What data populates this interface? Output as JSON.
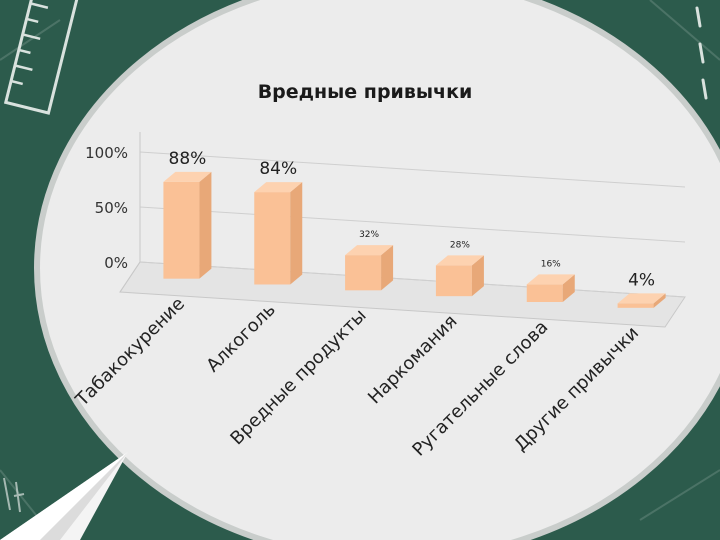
{
  "chart_data": {
    "type": "bar",
    "title": "Вредные привычки",
    "categories": [
      "Табакокурение",
      "Алкоголь",
      "Вредные продукты",
      "Наркомания",
      "Ругательные слова",
      "Другие привычки"
    ],
    "values": [
      88,
      84,
      32,
      28,
      16,
      4
    ],
    "data_labels": [
      "88%",
      "84%",
      "32%",
      "28%",
      "16%",
      "4%"
    ],
    "y_ticks": [
      "0%",
      "50%",
      "100%"
    ],
    "ylim": [
      0,
      100
    ],
    "grid": true,
    "style": "3d-column",
    "xlabel": "",
    "ylabel": ""
  },
  "colors": {
    "background": "#2c5b4c",
    "circle": "#ececec",
    "circle_border": "#c9cdcb",
    "bar_front": "#fac196",
    "bar_side": "#e8a878",
    "bar_top": "#fdd2b0",
    "chalk": "#d9e2de"
  },
  "icons": [
    "ruler-icon",
    "paper-plane-icon"
  ]
}
